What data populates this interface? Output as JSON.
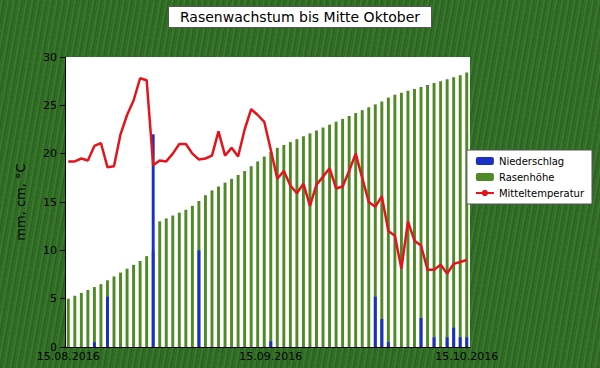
{
  "chart_data": {
    "type": "bar",
    "title": "Rasenwachstum bis Mitte Oktober",
    "ylabel": "mm, cm, °C",
    "categories": [
      "15.08.2016",
      null,
      null,
      null,
      null,
      null,
      null,
      null,
      null,
      null,
      null,
      null,
      null,
      null,
      null,
      null,
      null,
      null,
      null,
      null,
      null,
      null,
      null,
      null,
      null,
      null,
      null,
      null,
      null,
      null,
      null,
      "15.09.2016",
      null,
      null,
      null,
      null,
      null,
      null,
      null,
      null,
      null,
      null,
      null,
      null,
      null,
      null,
      null,
      null,
      null,
      null,
      null,
      null,
      null,
      null,
      null,
      null,
      null,
      null,
      null,
      null,
      null,
      "15.10.2016"
    ],
    "series": [
      {
        "name": "Niederschlag",
        "type": "bar",
        "color": "#1a2fc4",
        "values": [
          0,
          0,
          0,
          0,
          0.5,
          0,
          5.2,
          0,
          0,
          0,
          0,
          0,
          0,
          22,
          0,
          0,
          0,
          0,
          0,
          0,
          10,
          0,
          0,
          0,
          0,
          0,
          0,
          0,
          0,
          0,
          0,
          0.6,
          0,
          0,
          0,
          0,
          0,
          0,
          0,
          0,
          0,
          0,
          0,
          0,
          0,
          0,
          0,
          5.2,
          2.9,
          0.5,
          0,
          0,
          0,
          0,
          3,
          0,
          1,
          0,
          1,
          2,
          1,
          1
        ]
      },
      {
        "name": "Rasenhöhe",
        "type": "bar",
        "color": "#4f8a26",
        "values": [
          5.0,
          5.3,
          5.6,
          5.9,
          6.2,
          6.5,
          6.9,
          7.3,
          7.7,
          8.1,
          8.5,
          8.9,
          9.4,
          9.9,
          13.0,
          13.3,
          13.6,
          13.9,
          14.2,
          14.6,
          15.1,
          15.7,
          16.2,
          16.6,
          17.0,
          17.4,
          17.8,
          18.2,
          18.7,
          19.2,
          19.7,
          20.2,
          20.6,
          20.9,
          21.2,
          21.5,
          21.8,
          22.1,
          22.4,
          22.7,
          23.0,
          23.3,
          23.6,
          23.9,
          24.2,
          24.5,
          24.8,
          25.1,
          25.4,
          25.8,
          26.1,
          26.3,
          26.5,
          26.7,
          26.9,
          27.1,
          27.3,
          27.5,
          27.7,
          27.9,
          28.1,
          28.4
        ]
      },
      {
        "name": "Mitteltemperatur",
        "type": "line",
        "color": "#e3141b",
        "values": [
          19.2,
          19.2,
          19.5,
          19.3,
          20.8,
          21.1,
          18.6,
          18.7,
          22,
          24,
          25.5,
          27.8,
          27.6,
          18.8,
          19.3,
          19.2,
          20,
          21,
          21,
          20,
          19.4,
          19.5,
          19.8,
          22.3,
          19.8,
          20.6,
          19.7,
          22.5,
          24.6,
          24,
          23.3,
          20.4,
          17.4,
          18.2,
          16.7,
          15.9,
          16.9,
          14.6,
          16.8,
          17.6,
          18.5,
          16.4,
          16.6,
          18.2,
          20,
          17.5,
          15,
          14.5,
          15.6,
          12,
          11.5,
          8.1,
          13,
          11,
          10.5,
          8,
          8,
          8.5,
          7.6,
          8.6,
          8.8,
          9
        ]
      }
    ],
    "ylim": [
      0,
      30
    ],
    "yticks": [
      0,
      5,
      10,
      15,
      20,
      25,
      30
    ],
    "grid": false,
    "legend": "right"
  }
}
